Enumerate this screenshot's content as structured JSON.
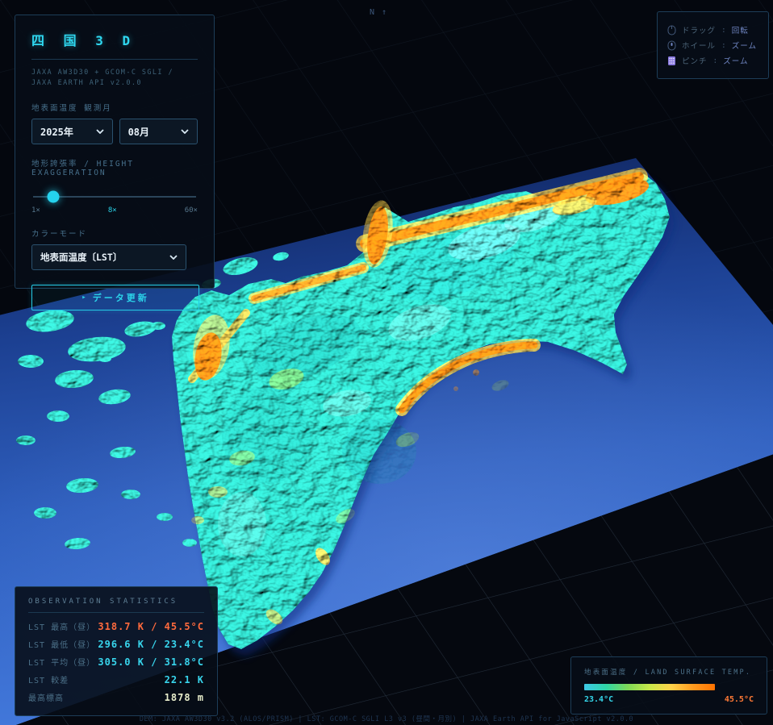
{
  "app": {
    "title": "四 国 3 D",
    "subtitle": "JAXA AW3D30 + GCOM-C SGLI / JAXA EARTH API v2.0.0"
  },
  "controls": {
    "month_label": "地表面温度 観測月",
    "year_value": "2025年",
    "month_value": "08月",
    "exaggeration_label": "地形誇張率 / HEIGHT EXAGGERATION",
    "slider": {
      "min_label": "1×",
      "current_label": "8×",
      "max_label": "60×",
      "percent": 13
    },
    "colormode_label": "カラーモード",
    "colormode_value": "地表面温度〔LST〕",
    "update_button_icon": "▸",
    "update_button": "データ更新"
  },
  "help": {
    "items": [
      {
        "icon": "mouse-drag-icon",
        "label": "ドラッグ",
        "sep": ":",
        "value": "回転"
      },
      {
        "icon": "mouse-wheel-icon",
        "label": "ホイール",
        "sep": ":",
        "value": "ズーム"
      },
      {
        "icon": "pinch-grid-icon",
        "label": "ピンチ",
        "sep": ":",
        "value": "ズーム"
      }
    ]
  },
  "compass": {
    "north_label": "N",
    "arrow": "↑"
  },
  "stats": {
    "title": "OBSERVATION STATISTICS",
    "rows": [
      {
        "label": "LST 最高（昼）",
        "value": "318.7 K / 45.5°C",
        "color": "#ff6a3d"
      },
      {
        "label": "LST 最低（昼）",
        "value": "296.6 K / 23.4°C",
        "color": "#38d5ec"
      },
      {
        "label": "LST 平均（昼）",
        "value": "305.0 K / 31.8°C",
        "color": "#38d5ec"
      },
      {
        "label": "LST 較差",
        "value": "22.1 K",
        "color": "#38d5ec"
      },
      {
        "label": "最高標高",
        "value": "1878 m",
        "color": "#e8edcb"
      }
    ]
  },
  "legend": {
    "title": "地表面温度 / LAND SURFACE TEMP.",
    "min": "23.4°C",
    "max": "45.5°C",
    "gradient": [
      "#3ec8e8",
      "#2fd6a8",
      "#7ed957",
      "#c8e84a",
      "#ffd24a",
      "#ff9a1f",
      "#ff7200"
    ]
  },
  "attribution": "DEM: JAXA AW3D30 v3.2 (ALOS/PRISM)  |  LST: GCOM-C SGLI L3 v3 (昼間・月別)  |  JAXA Earth API for JavaScript v2.0.0",
  "colors": {
    "accent_cyan": "#2bd4ea",
    "hot_orange": "#ff7a00",
    "terrain_teal": "#2fd0c0",
    "sea_blue": "#3f74d6",
    "panel_border": "#1d3d58",
    "background": "#04070e"
  }
}
